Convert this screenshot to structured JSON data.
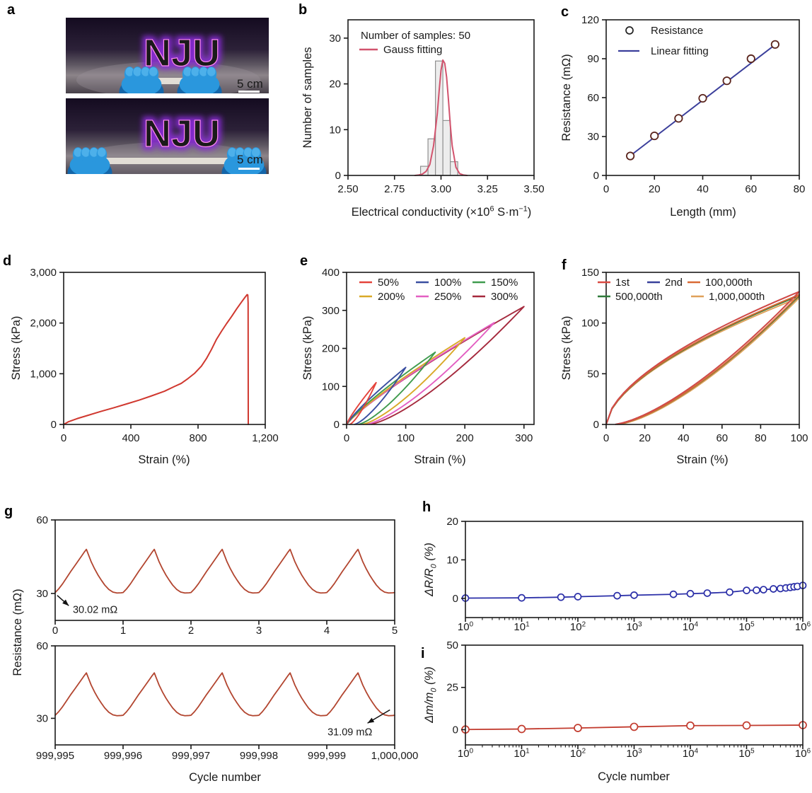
{
  "figure": {
    "panels": {
      "a": "a",
      "b": "b",
      "c": "c",
      "d": "d",
      "e": "e",
      "f": "f",
      "g": "g",
      "h": "h",
      "i": "i"
    }
  },
  "panel_a": {
    "sign_text": "NJU",
    "scale_label": "5 cm",
    "colors": {
      "bg_top": "#140b20",
      "bg_mid": "#2c2138",
      "bg_table": "#8c8489",
      "bg_bottom": "#474049",
      "neon_core": "#f112df",
      "neon_glow": "#8a2bd8",
      "glove": "#2a97dd",
      "glove_dark": "#1466a9",
      "strip": "#e8e4da",
      "scale_text": "#f5f5f5"
    },
    "photos": [
      {
        "stretched": false,
        "scale_label": "5 cm"
      },
      {
        "stretched": true,
        "scale_label": "5 cm"
      }
    ]
  },
  "chart_data": [
    {
      "panel": "b",
      "type": "histogram",
      "xlim": [
        2.5,
        3.5
      ],
      "ylim": [
        0,
        34
      ],
      "xticks": [
        {
          "v": 2.5,
          "l": "2.50"
        },
        {
          "v": 2.75,
          "l": "2.75"
        },
        {
          "v": 3.0,
          "l": "3.00"
        },
        {
          "v": 3.25,
          "l": "3.25"
        },
        {
          "v": 3.5,
          "l": "3.50"
        }
      ],
      "yticks": [
        {
          "v": 0,
          "l": "0"
        },
        {
          "v": 10,
          "l": "10"
        },
        {
          "v": 20,
          "l": "20"
        },
        {
          "v": 30,
          "l": "30"
        }
      ],
      "xlabel": "Electrical conductivity (×10^{6} S·m^{−1})",
      "ylabel": "Number of samples",
      "bar_fill": "#ededed",
      "bar_stroke": "#8f8f8f",
      "bins": [
        {
          "x0": 2.89,
          "x1": 2.93,
          "h": 2
        },
        {
          "x0": 2.93,
          "x1": 2.97,
          "h": 8
        },
        {
          "x0": 2.97,
          "x1": 3.01,
          "h": 25
        },
        {
          "x0": 3.01,
          "x1": 3.05,
          "h": 12
        },
        {
          "x0": 3.05,
          "x1": 3.09,
          "h": 3
        }
      ],
      "curve": {
        "color": "#d2536d",
        "points": [
          [
            2.86,
            0
          ],
          [
            2.88,
            0.1
          ],
          [
            2.9,
            0.3
          ],
          [
            2.92,
            0.9
          ],
          [
            2.94,
            2.4
          ],
          [
            2.96,
            6.5
          ],
          [
            2.98,
            13.5
          ],
          [
            2.99,
            18.5
          ],
          [
            3.0,
            23.0
          ],
          [
            3.01,
            25.2
          ],
          [
            3.02,
            24.5
          ],
          [
            3.03,
            21.5
          ],
          [
            3.04,
            16.5
          ],
          [
            3.05,
            11.0
          ],
          [
            3.06,
            6.5
          ],
          [
            3.08,
            1.8
          ],
          [
            3.1,
            0.4
          ],
          [
            3.12,
            0.1
          ],
          [
            3.14,
            0
          ]
        ]
      },
      "legend_title": "Number of samples: 50",
      "legend": [
        {
          "label": "Gauss fitting",
          "color": "#d2536d",
          "marker": "line"
        }
      ]
    },
    {
      "panel": "c",
      "type": "scatter_line",
      "xlim": [
        0,
        80
      ],
      "ylim": [
        0,
        120
      ],
      "xticks": [
        {
          "v": 0,
          "l": "0"
        },
        {
          "v": 20,
          "l": "20"
        },
        {
          "v": 40,
          "l": "40"
        },
        {
          "v": 60,
          "l": "60"
        },
        {
          "v": 80,
          "l": "80"
        }
      ],
      "yticks": [
        {
          "v": 0,
          "l": "0"
        },
        {
          "v": 30,
          "l": "30"
        },
        {
          "v": 60,
          "l": "60"
        },
        {
          "v": 90,
          "l": "90"
        },
        {
          "v": 120,
          "l": "120"
        }
      ],
      "xlabel": "Length (mm)",
      "ylabel": "Resistance (mΩ)",
      "line_color": "#3b3f9b",
      "marker_stroke": "#5a241c",
      "fit": [
        [
          10,
          15.2
        ],
        [
          70,
          100.8
        ]
      ],
      "points": [
        [
          10,
          15
        ],
        [
          20,
          30.5
        ],
        [
          30,
          44
        ],
        [
          40,
          59.5
        ],
        [
          50,
          73
        ],
        [
          60,
          90
        ],
        [
          70,
          101
        ]
      ],
      "legend": [
        {
          "label": "Resistance",
          "marker": "circle",
          "color": "#222222"
        },
        {
          "label": "Linear fitting",
          "marker": "line",
          "color": "#3b3f9b"
        }
      ]
    },
    {
      "panel": "d",
      "type": "line",
      "xlim": [
        0,
        1200
      ],
      "ylim": [
        0,
        3000
      ],
      "xticks": [
        {
          "v": 0,
          "l": "0"
        },
        {
          "v": 400,
          "l": "400"
        },
        {
          "v": 800,
          "l": "800"
        },
        {
          "v": 1200,
          "l": "1,200"
        }
      ],
      "yticks": [
        {
          "v": 0,
          "l": "0"
        },
        {
          "v": 1000,
          "l": "1,000"
        },
        {
          "v": 2000,
          "l": "2,000"
        },
        {
          "v": 3000,
          "l": "3,000"
        }
      ],
      "xlabel": "Strain (%)",
      "ylabel": "Stress (kPa)",
      "series": [
        {
          "color": "#d0382f",
          "points": [
            [
              0,
              0
            ],
            [
              30,
              55
            ],
            [
              80,
              115
            ],
            [
              150,
              185
            ],
            [
              220,
              255
            ],
            [
              300,
              330
            ],
            [
              380,
              410
            ],
            [
              450,
              480
            ],
            [
              520,
              560
            ],
            [
              600,
              655
            ],
            [
              660,
              750
            ],
            [
              700,
              810
            ],
            [
              740,
              905
            ],
            [
              780,
              1010
            ],
            [
              820,
              1150
            ],
            [
              850,
              1300
            ],
            [
              880,
              1480
            ],
            [
              910,
              1680
            ],
            [
              940,
              1840
            ],
            [
              970,
              1990
            ],
            [
              1000,
              2130
            ],
            [
              1030,
              2280
            ],
            [
              1060,
              2420
            ],
            [
              1080,
              2510
            ],
            [
              1092,
              2560
            ],
            [
              1096,
              2555
            ],
            [
              1098,
              2400
            ],
            [
              1099,
              0
            ]
          ]
        }
      ]
    },
    {
      "panel": "e",
      "type": "loops",
      "xlim": [
        0,
        317
      ],
      "ylim": [
        0,
        400
      ],
      "xticks": [
        {
          "v": 0,
          "l": "0"
        },
        {
          "v": 100,
          "l": "100"
        },
        {
          "v": 200,
          "l": "200"
        },
        {
          "v": 300,
          "l": "300"
        }
      ],
      "yticks": [
        {
          "v": 0,
          "l": "0"
        },
        {
          "v": 100,
          "l": "100"
        },
        {
          "v": 200,
          "l": "200"
        },
        {
          "v": 300,
          "l": "300"
        },
        {
          "v": 400,
          "l": "400"
        }
      ],
      "xlabel": "Strain (%)",
      "ylabel": "Stress (kPa)",
      "up_exp": 0.85,
      "down_exp": 1.38,
      "loops": [
        {
          "label": "50%",
          "color": "#e4433b",
          "max_strain": 50,
          "max_stress": 110,
          "residual": 0.1
        },
        {
          "label": "100%",
          "color": "#3a4fa0",
          "max_strain": 100,
          "max_stress": 150,
          "residual": 0.13
        },
        {
          "label": "150%",
          "color": "#3f9b4e",
          "max_strain": 150,
          "max_stress": 190,
          "residual": 0.13
        },
        {
          "label": "200%",
          "color": "#d9a928",
          "max_strain": 200,
          "max_stress": 228,
          "residual": 0.13
        },
        {
          "label": "250%",
          "color": "#e35fc2",
          "max_strain": 250,
          "max_stress": 268,
          "residual": 0.13
        },
        {
          "label": "300%",
          "color": "#a5293d",
          "max_strain": 300,
          "max_stress": 310,
          "residual": 0.13
        }
      ]
    },
    {
      "panel": "f",
      "type": "loops",
      "xlim": [
        0,
        100
      ],
      "ylim": [
        0,
        150
      ],
      "xticks": [
        {
          "v": 0,
          "l": "0"
        },
        {
          "v": 20,
          "l": "20"
        },
        {
          "v": 40,
          "l": "40"
        },
        {
          "v": 60,
          "l": "60"
        },
        {
          "v": 80,
          "l": "80"
        },
        {
          "v": 100,
          "l": "100"
        }
      ],
      "yticks": [
        {
          "v": 0,
          "l": "0"
        },
        {
          "v": 50,
          "l": "50"
        },
        {
          "v": 100,
          "l": "100"
        },
        {
          "v": 150,
          "l": "150"
        }
      ],
      "xlabel": "Strain (%)",
      "ylabel": "Stress (kPa)",
      "up_exp": 0.6,
      "down_exp": 1.45,
      "loops": [
        {
          "label": "1st",
          "color": "#d94a42",
          "max_strain": 100,
          "max_stress": 131,
          "residual": 0.04
        },
        {
          "label": "2nd",
          "color": "#39419b",
          "max_strain": 100,
          "max_stress": 131,
          "residual": 0.04
        },
        {
          "label": "100,000th",
          "color": "#d96a35",
          "max_strain": 100,
          "max_stress": 128,
          "residual": 0.05
        },
        {
          "label": "500,000th",
          "color": "#2f7a3a",
          "max_strain": 100,
          "max_stress": 127,
          "residual": 0.05
        },
        {
          "label": "1,000,000th",
          "color": "#e0a15a",
          "max_strain": 100,
          "max_stress": 125,
          "residual": 0.06
        }
      ]
    },
    {
      "panel": "g",
      "type": "dual_wave",
      "ylabel": "Resistance (mΩ)",
      "xlabel": "Cycle number",
      "ylim": [
        19,
        60
      ],
      "color": "#b2452f",
      "yticks": [
        {
          "v": 30,
          "l": "30"
        },
        {
          "v": 60,
          "l": "60"
        }
      ],
      "cycle_shape": [
        [
          0,
          0.02
        ],
        [
          0.05,
          0.1
        ],
        [
          0.11,
          0.22
        ],
        [
          0.17,
          0.36
        ],
        [
          0.23,
          0.5
        ],
        [
          0.29,
          0.63
        ],
        [
          0.34,
          0.74
        ],
        [
          0.39,
          0.85
        ],
        [
          0.43,
          0.94
        ],
        [
          0.46,
          1.0
        ],
        [
          0.49,
          0.88
        ],
        [
          0.53,
          0.72
        ],
        [
          0.58,
          0.56
        ],
        [
          0.63,
          0.42
        ],
        [
          0.68,
          0.3
        ],
        [
          0.73,
          0.19
        ],
        [
          0.79,
          0.09
        ],
        [
          0.85,
          0.03
        ],
        [
          0.91,
          0.01
        ],
        [
          0.97,
          0.015
        ],
        [
          1,
          0.02
        ]
      ],
      "subplots": [
        {
          "xlim": [
            0,
            5
          ],
          "xticks": [
            {
              "v": 0,
              "l": "0"
            },
            {
              "v": 1,
              "l": "1"
            },
            {
              "v": 2,
              "l": "2"
            },
            {
              "v": 3,
              "l": "3"
            },
            {
              "v": 4,
              "l": "4"
            },
            {
              "v": 5,
              "l": "5"
            }
          ],
          "wave": {
            "start": 0,
            "cycles": 5,
            "base": 30,
            "peak": 48
          },
          "annotation": {
            "text": "30.02 mΩ",
            "from": [
              0.03,
              29.2
            ],
            "to": [
              0.2,
              25.0
            ],
            "text_at": [
              0.26,
              22.1
            ],
            "anchor": "start"
          }
        },
        {
          "xlim": [
            999995,
            1000000
          ],
          "xticks": [
            {
              "v": 999995,
              "l": "999,995"
            },
            {
              "v": 999996,
              "l": "999,996"
            },
            {
              "v": 999997,
              "l": "999,997"
            },
            {
              "v": 999998,
              "l": "999,998"
            },
            {
              "v": 999999,
              "l": "999,999"
            },
            {
              "v": 1000000,
              "l": "1,000,000"
            }
          ],
          "wave": {
            "start": 999995,
            "cycles": 5,
            "base": 30.9,
            "peak": 48.8
          },
          "annotation": {
            "text": "31.09 mΩ",
            "from": [
              999999.93,
              33.5
            ],
            "to": [
              999999.6,
              28.0
            ],
            "text_at": [
              999999.67,
              23.0
            ],
            "anchor": "end"
          }
        }
      ]
    },
    {
      "panel": "h",
      "type": "logline",
      "xlim_exp": [
        0,
        6
      ],
      "ylim": [
        -5,
        20
      ],
      "xticks": [
        {
          "e": 0,
          "l": "10^{0}"
        },
        {
          "e": 1,
          "l": "10^{1}"
        },
        {
          "e": 2,
          "l": "10^{2}"
        },
        {
          "e": 3,
          "l": "10^{3}"
        },
        {
          "e": 4,
          "l": "10^{4}"
        },
        {
          "e": 5,
          "l": "10^{5}"
        },
        {
          "e": 6,
          "l": "10^{6}"
        }
      ],
      "yticks": [
        {
          "v": 0,
          "l": "0"
        },
        {
          "v": 10,
          "l": "10"
        },
        {
          "v": 20,
          "l": "20"
        }
      ],
      "xlabel": "",
      "ylabel": "ΔR/R_{0} (%)",
      "ylabel_italic": true,
      "color": "#2b2fa8",
      "marker_r": 4.5,
      "points": [
        [
          1,
          0.05
        ],
        [
          10,
          0.12
        ],
        [
          50,
          0.3
        ],
        [
          100,
          0.42
        ],
        [
          500,
          0.68
        ],
        [
          1000,
          0.82
        ],
        [
          5000,
          1.05
        ],
        [
          10000,
          1.2
        ],
        [
          20000,
          1.35
        ],
        [
          50000,
          1.6
        ],
        [
          100000,
          2.05
        ],
        [
          150000,
          2.1
        ],
        [
          200000,
          2.25
        ],
        [
          300000,
          2.45
        ],
        [
          400000,
          2.55
        ],
        [
          500000,
          2.7
        ],
        [
          600000,
          2.85
        ],
        [
          700000,
          3.0
        ],
        [
          800000,
          3.1
        ],
        [
          1000000,
          3.35
        ]
      ]
    },
    {
      "panel": "i",
      "type": "logline",
      "xlim_exp": [
        0,
        6
      ],
      "ylim": [
        -9,
        50
      ],
      "xticks": [
        {
          "e": 0,
          "l": "10^{0}"
        },
        {
          "e": 1,
          "l": "10^{1}"
        },
        {
          "e": 2,
          "l": "10^{2}"
        },
        {
          "e": 3,
          "l": "10^{3}"
        },
        {
          "e": 4,
          "l": "10^{4}"
        },
        {
          "e": 5,
          "l": "10^{5}"
        },
        {
          "e": 6,
          "l": "10^{6}"
        }
      ],
      "yticks": [
        {
          "v": 0,
          "l": "0"
        },
        {
          "v": 25,
          "l": "25"
        },
        {
          "v": 50,
          "l": "50"
        }
      ],
      "xlabel": "Cycle number",
      "ylabel": "Δm/m_{0} (%)",
      "ylabel_italic": true,
      "color": "#c23b2e",
      "marker_r": 5,
      "points": [
        [
          1,
          0.1
        ],
        [
          10,
          0.4
        ],
        [
          100,
          1.0
        ],
        [
          1000,
          1.7
        ],
        [
          10000,
          2.4
        ],
        [
          100000,
          2.5
        ],
        [
          1000000,
          2.7
        ]
      ]
    }
  ]
}
